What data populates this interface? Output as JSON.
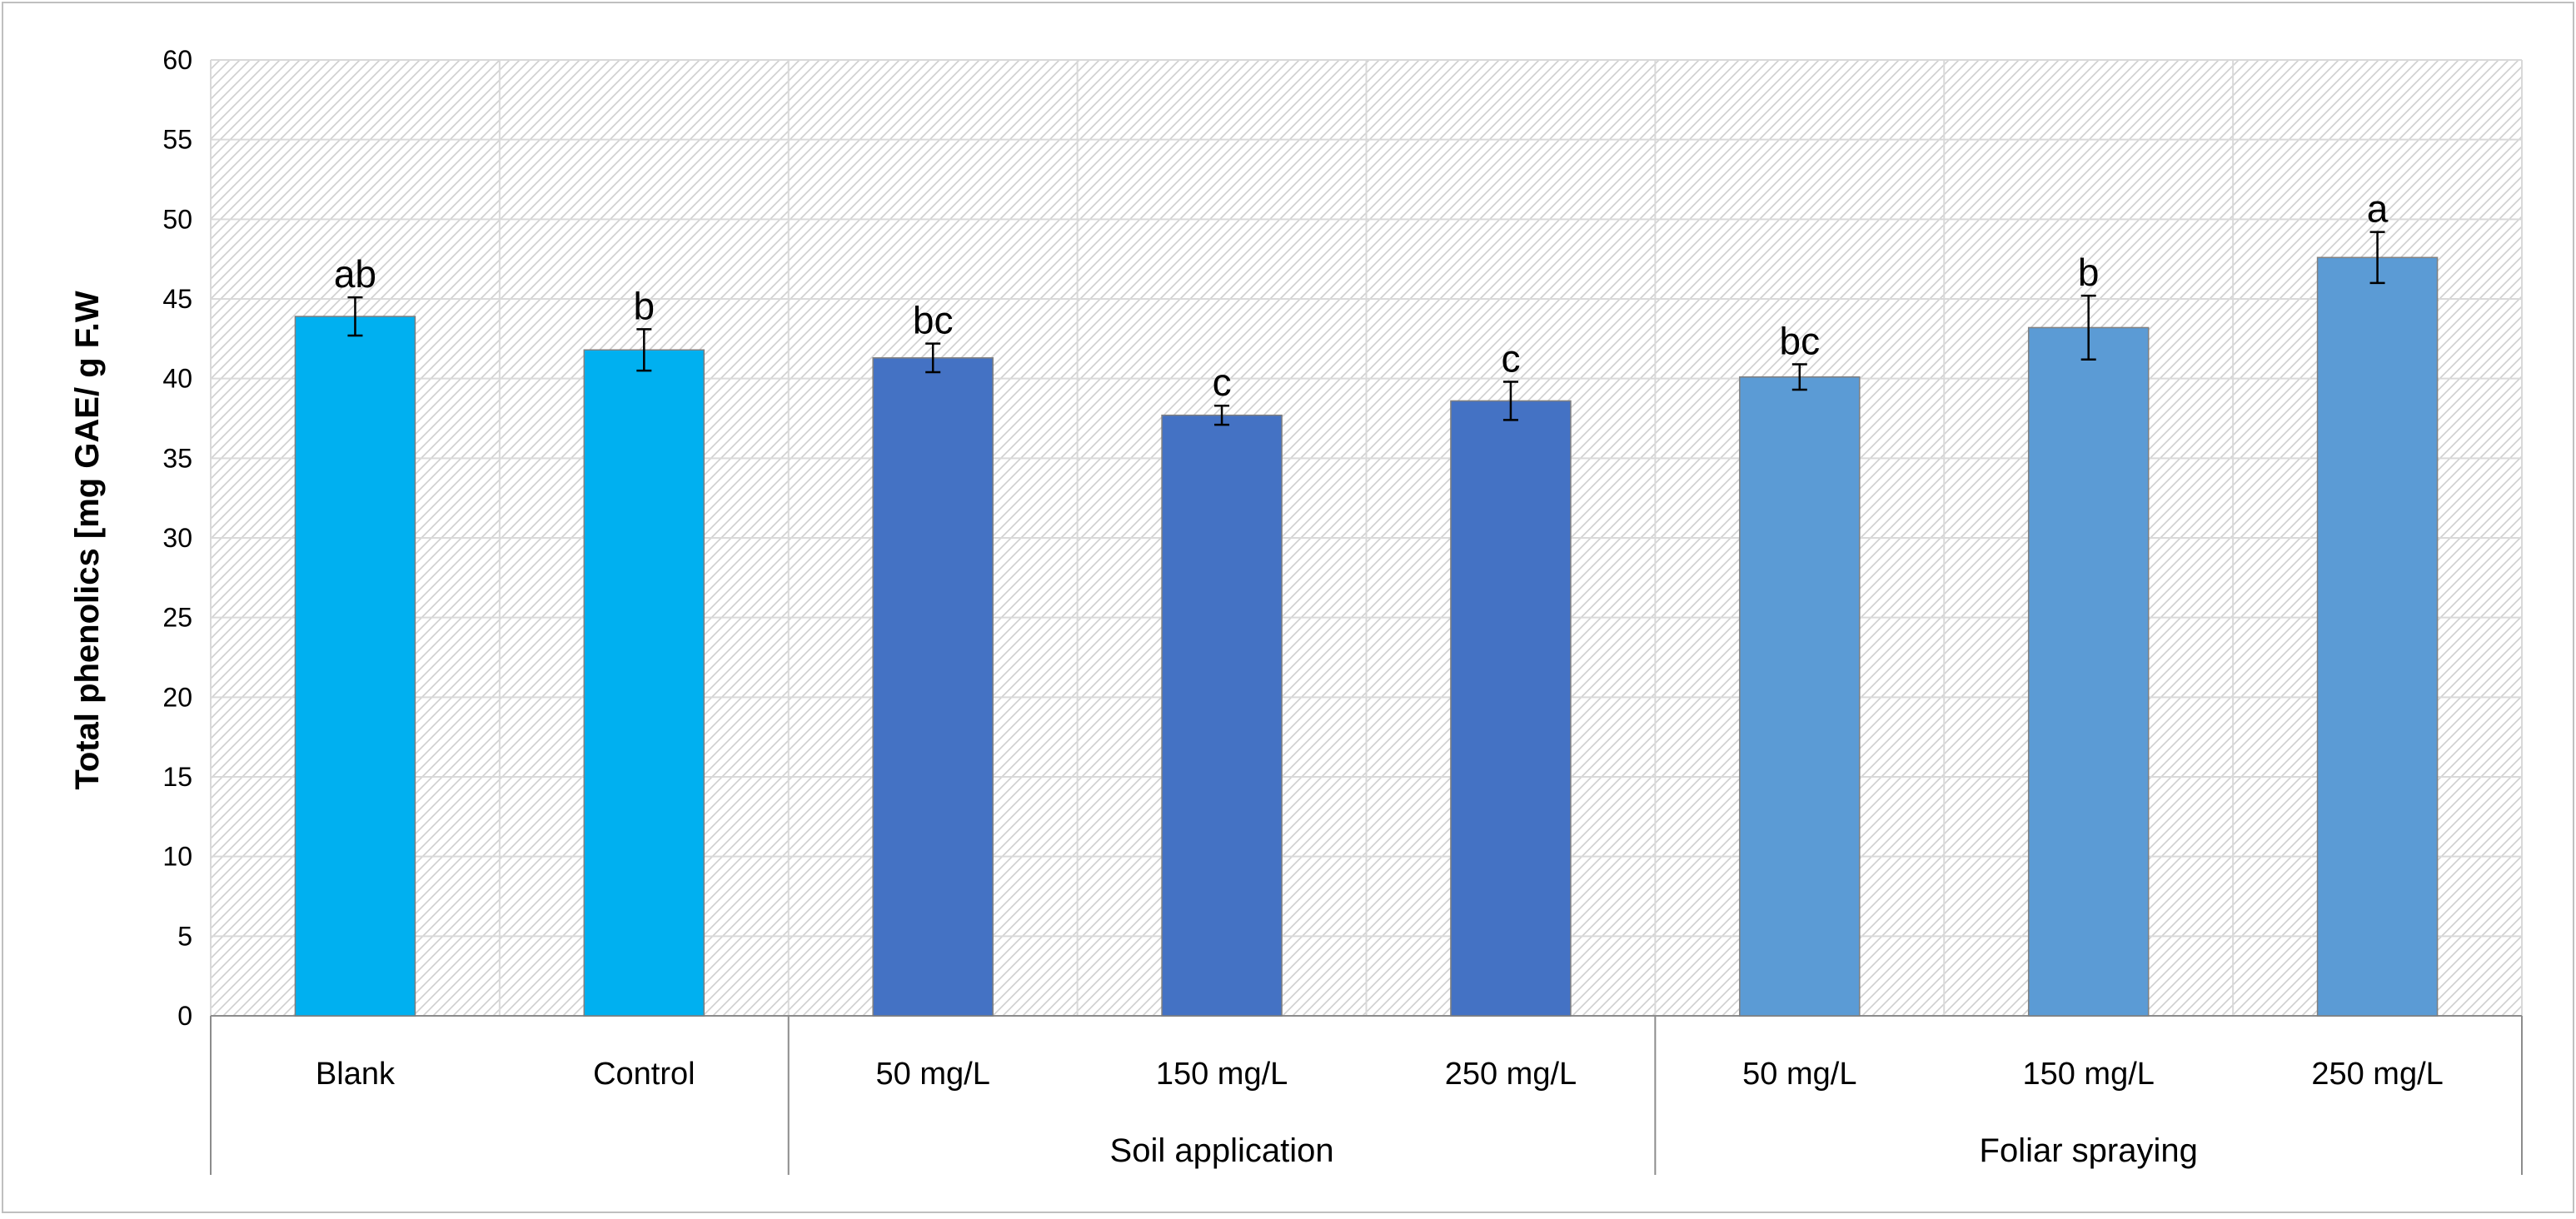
{
  "chart_data": {
    "type": "bar",
    "title": "",
    "xlabel": "",
    "ylabel": "Total phenolics [mg GAE/ g F.W",
    "ylim": [
      0,
      60
    ],
    "yticks": [
      0,
      5,
      10,
      15,
      20,
      25,
      30,
      35,
      40,
      45,
      50,
      55,
      60
    ],
    "grid": true,
    "categories": [
      "Blank",
      "Control",
      "50 mg/L",
      "150 mg/L",
      "250 mg/L",
      "50 mg/L",
      "150 mg/L",
      "250 mg/L"
    ],
    "values": [
      43.9,
      41.8,
      41.3,
      37.7,
      38.6,
      40.1,
      43.2,
      47.6
    ],
    "errors": [
      1.2,
      1.3,
      0.9,
      0.6,
      1.2,
      0.8,
      2.0,
      1.6
    ],
    "significance": [
      "ab",
      "b",
      "bc",
      "c",
      "c",
      "bc",
      "b",
      "a"
    ],
    "groups": [
      {
        "label": "",
        "start": 0,
        "end": 1
      },
      {
        "label": "Soil application",
        "start": 2,
        "end": 4
      },
      {
        "label": "Foliar spraying",
        "start": 5,
        "end": 7
      }
    ],
    "colors": [
      "#00B0F0",
      "#00B0F0",
      "#4472C4",
      "#4472C4",
      "#4472C4",
      "#5B9BD5",
      "#5B9BD5",
      "#5B9BD5"
    ]
  }
}
